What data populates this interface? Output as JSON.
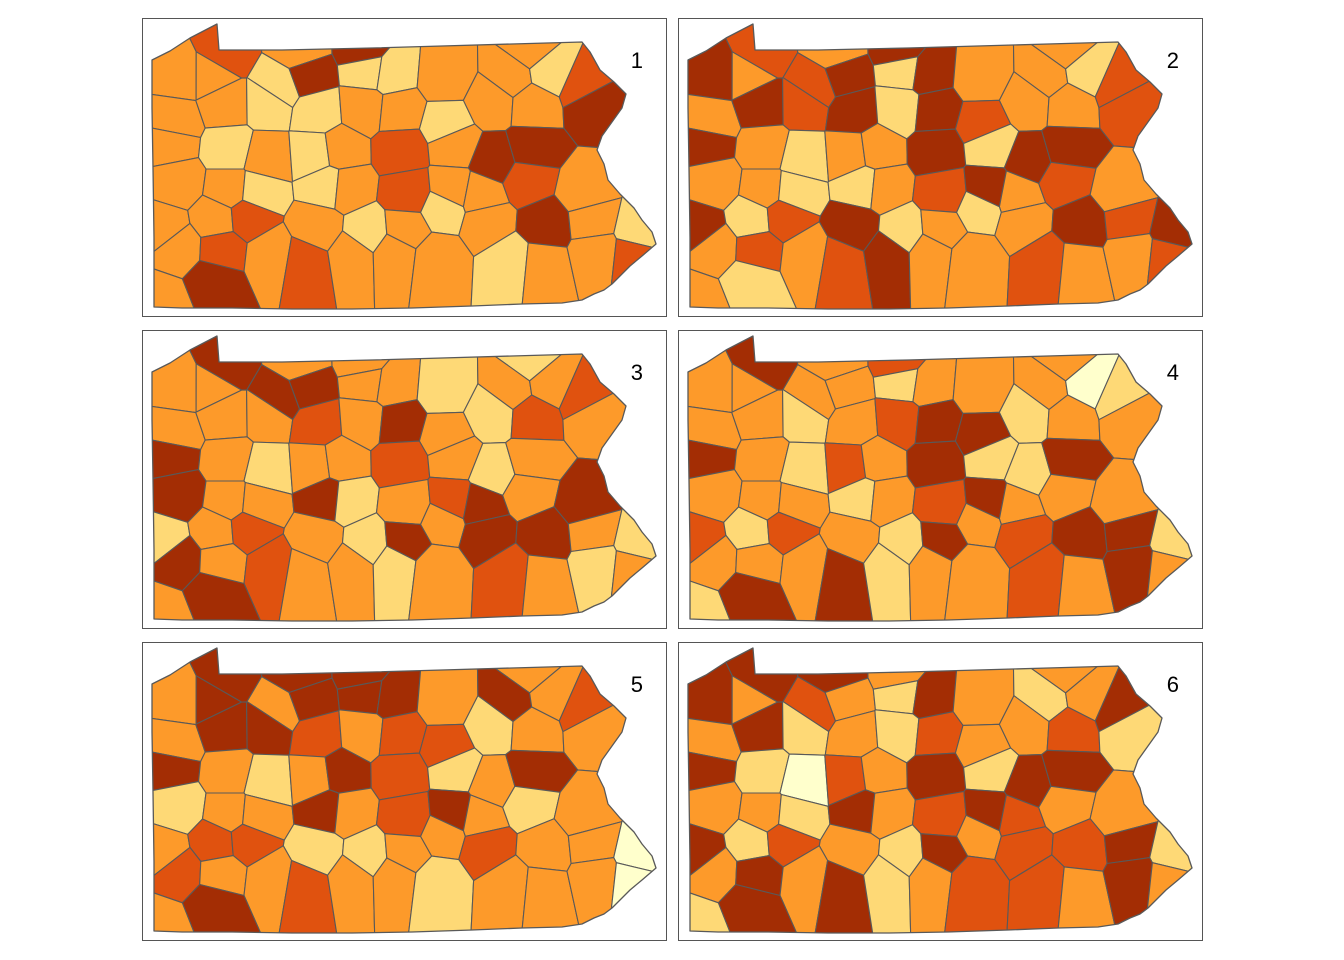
{
  "palette": [
    "#ffffcc",
    "#fed976",
    "#fd9a2a",
    "#e0520f",
    "#a32d04"
  ],
  "panels": [
    {
      "label": "1",
      "classes": [
        3,
        2,
        4,
        2,
        2,
        2,
        1,
        4,
        1,
        1,
        2,
        2,
        1,
        3,
        2,
        2,
        1,
        1,
        2,
        2,
        1,
        2,
        2,
        4,
        2,
        1,
        2,
        1,
        2,
        3,
        2,
        4,
        4,
        2,
        2,
        1,
        1,
        2,
        3,
        2,
        2,
        3,
        2,
        2,
        2,
        3,
        2,
        1,
        2,
        1,
        2,
        4,
        2,
        1,
        2,
        3,
        2,
        3,
        2,
        2,
        2,
        1,
        2,
        2,
        3,
        2,
        4
      ]
    },
    {
      "label": "2",
      "classes": [
        3,
        2,
        4,
        2,
        4,
        2,
        3,
        4,
        1,
        4,
        2,
        2,
        1,
        3,
        2,
        4,
        3,
        4,
        1,
        4,
        3,
        2,
        2,
        3,
        4,
        2,
        1,
        2,
        2,
        4,
        1,
        4,
        4,
        2,
        2,
        1,
        1,
        2,
        3,
        4,
        2,
        3,
        2,
        4,
        1,
        3,
        4,
        1,
        2,
        1,
        2,
        4,
        3,
        4,
        2,
        3,
        2,
        3,
        4,
        2,
        2,
        3,
        2,
        2,
        3,
        2,
        1
      ]
    },
    {
      "label": "3",
      "classes": [
        4,
        2,
        2,
        1,
        2,
        2,
        4,
        4,
        2,
        2,
        1,
        2,
        2,
        3,
        2,
        2,
        2,
        3,
        2,
        4,
        2,
        1,
        3,
        2,
        4,
        2,
        1,
        2,
        2,
        3,
        2,
        1,
        2,
        4,
        2,
        2,
        4,
        1,
        2,
        3,
        4,
        2,
        4,
        1,
        2,
        3,
        2,
        1,
        4,
        2,
        4,
        4,
        2,
        1,
        4,
        2,
        3,
        2,
        2,
        1,
        2,
        3,
        2,
        1,
        2,
        2,
        4
      ]
    },
    {
      "label": "4",
      "classes": [
        4,
        2,
        3,
        2,
        2,
        2,
        2,
        2,
        1,
        2,
        2,
        2,
        0,
        1,
        2,
        2,
        1,
        2,
        3,
        4,
        4,
        1,
        2,
        2,
        4,
        2,
        1,
        3,
        2,
        4,
        1,
        1,
        4,
        2,
        2,
        2,
        1,
        2,
        3,
        4,
        2,
        2,
        2,
        3,
        1,
        3,
        2,
        1,
        4,
        2,
        3,
        4,
        4,
        1,
        2,
        2,
        2,
        4,
        1,
        2,
        2,
        3,
        2,
        4,
        2,
        1,
        4
      ]
    },
    {
      "label": "5",
      "classes": [
        4,
        4,
        4,
        2,
        2,
        4,
        2,
        4,
        4,
        4,
        2,
        4,
        2,
        3,
        2,
        4,
        4,
        3,
        2,
        3,
        3,
        1,
        2,
        2,
        4,
        2,
        1,
        2,
        4,
        3,
        1,
        2,
        4,
        1,
        2,
        2,
        4,
        2,
        3,
        4,
        2,
        1,
        2,
        2,
        3,
        3,
        1,
        1,
        2,
        2,
        3,
        2,
        2,
        0,
        3,
        2,
        2,
        3,
        2,
        2,
        1,
        2,
        2,
        2,
        0,
        2,
        4
      ]
    },
    {
      "label": "6",
      "classes": [
        4,
        4,
        2,
        2,
        4,
        2,
        3,
        2,
        1,
        4,
        2,
        1,
        2,
        4,
        2,
        4,
        1,
        2,
        1,
        3,
        2,
        2,
        3,
        1,
        4,
        1,
        0,
        3,
        2,
        4,
        1,
        4,
        4,
        2,
        2,
        1,
        4,
        2,
        3,
        4,
        3,
        2,
        2,
        4,
        1,
        3,
        2,
        1,
        4,
        2,
        3,
        3,
        4,
        1,
        2,
        4,
        2,
        4,
        1,
        2,
        3,
        3,
        2,
        4,
        2,
        1,
        4
      ]
    }
  ]
}
